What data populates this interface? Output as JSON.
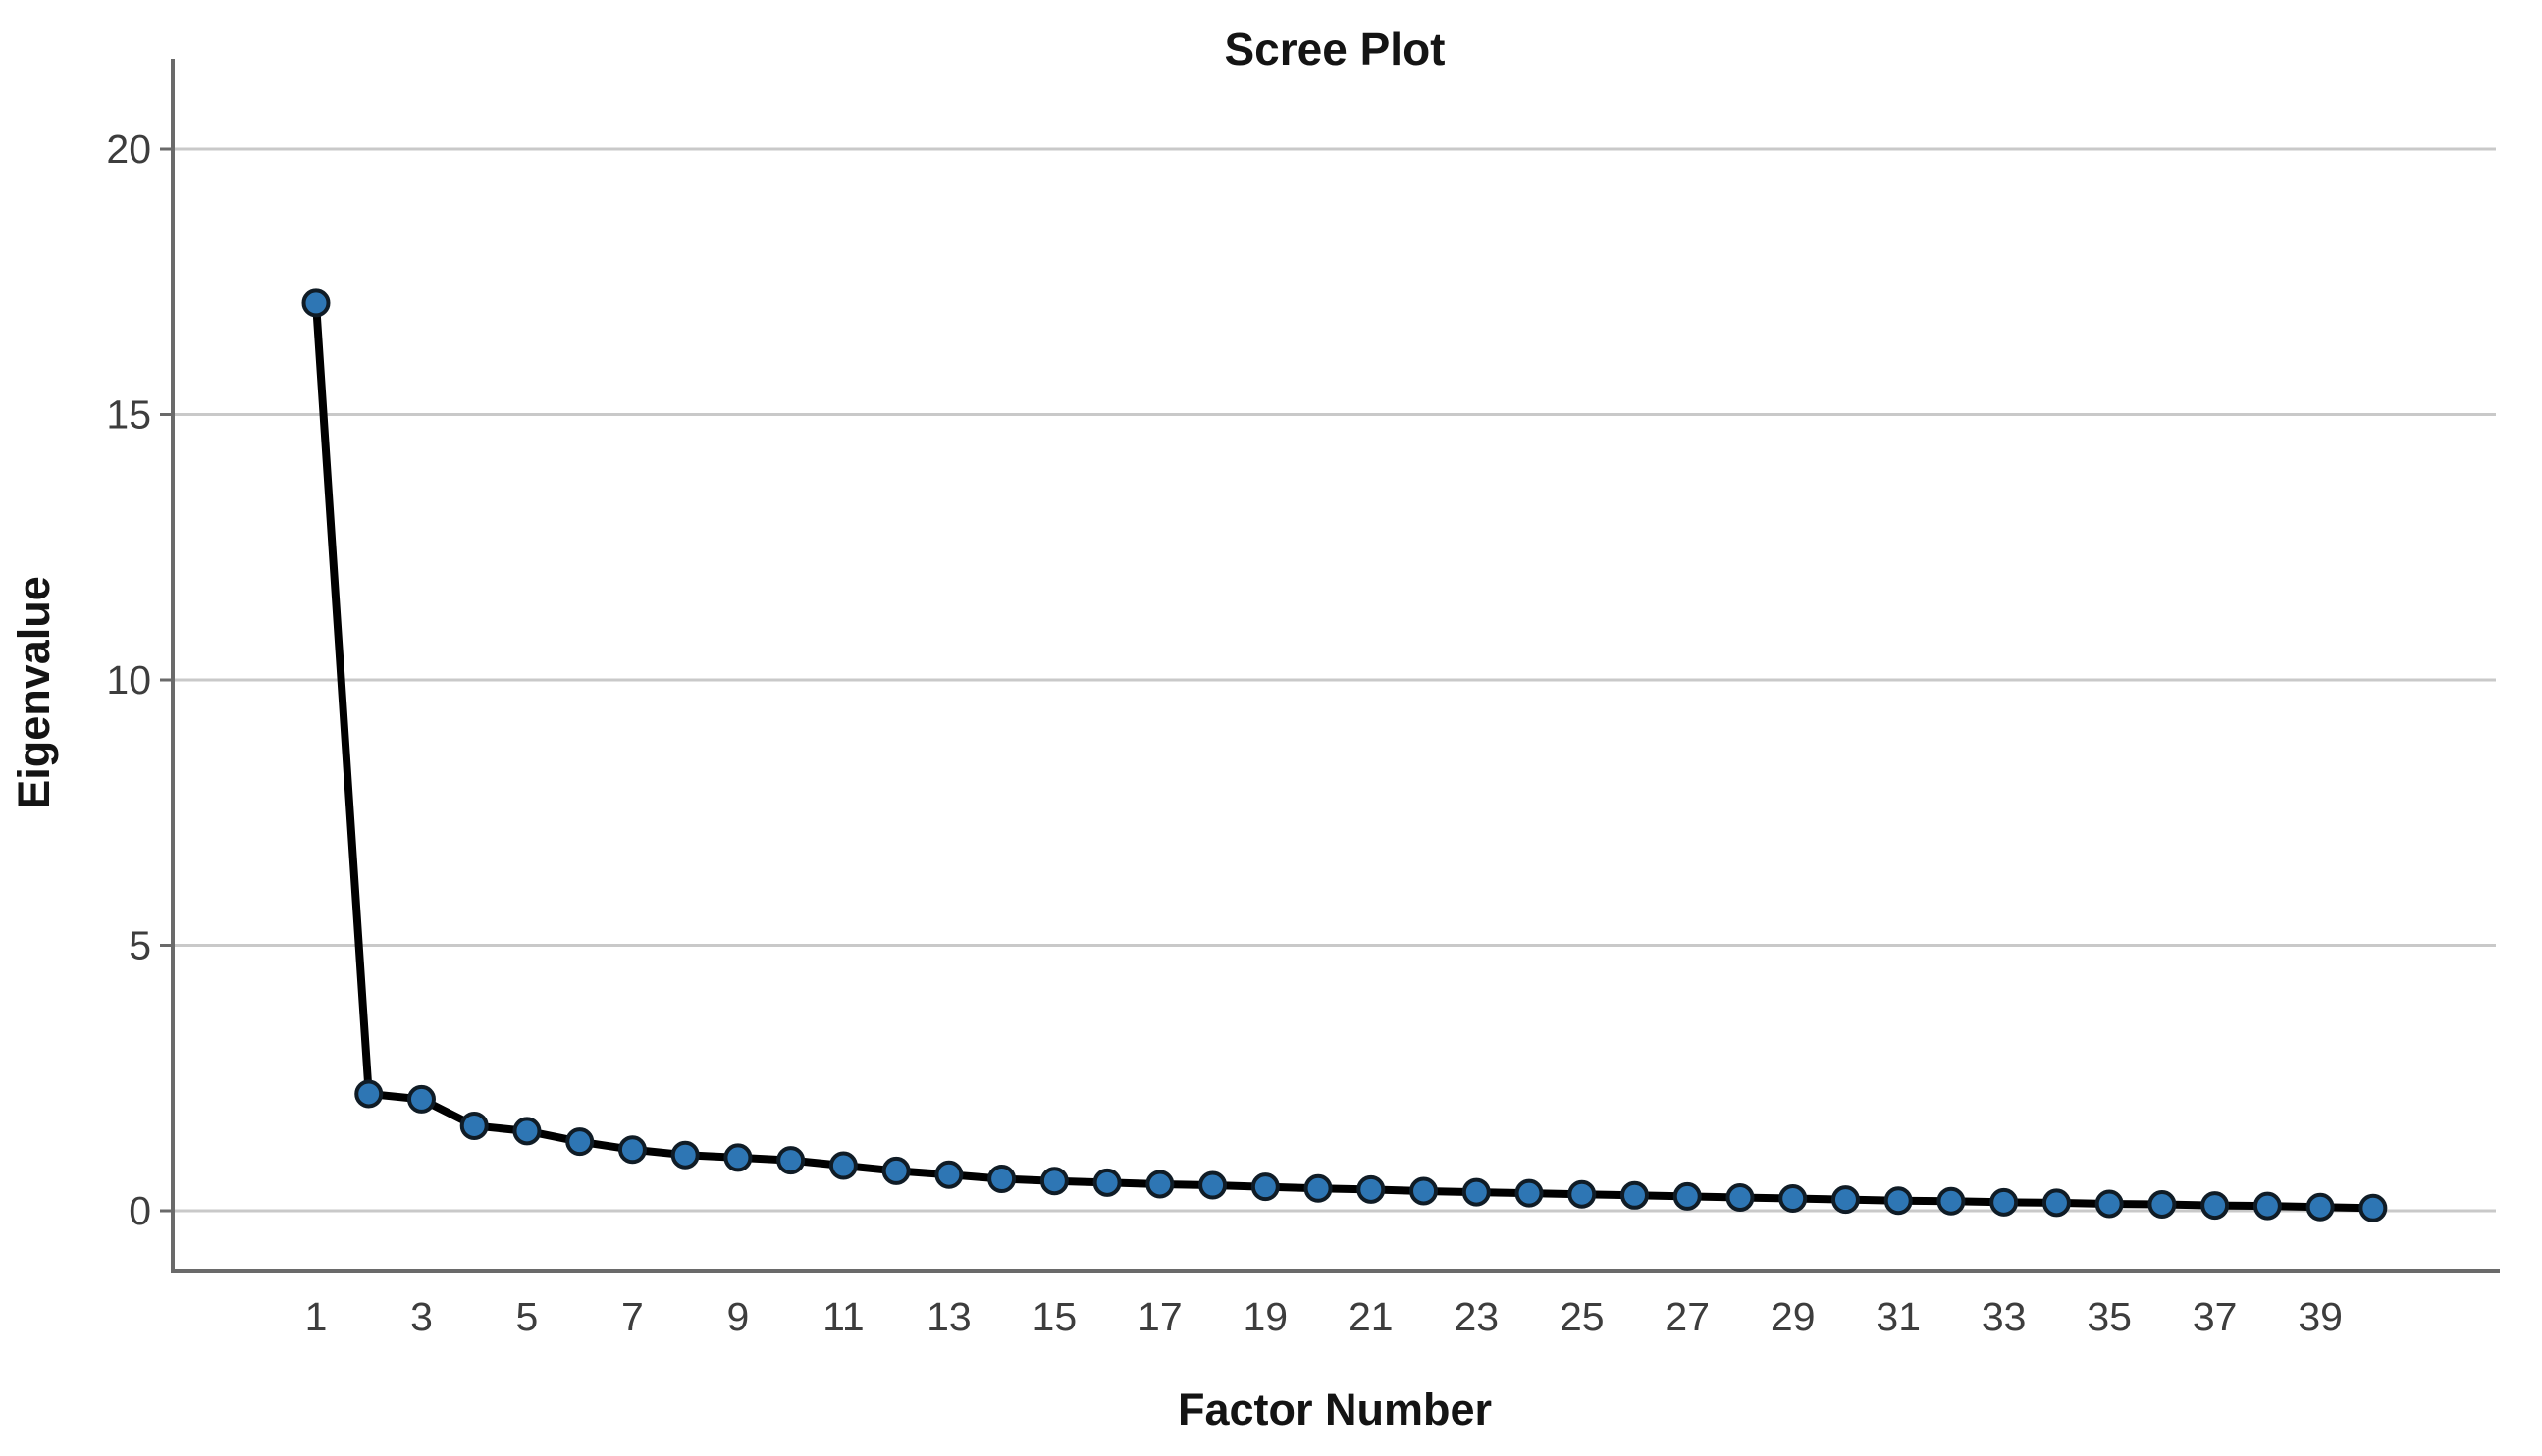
{
  "chart_data": {
    "type": "line",
    "title": "Scree Plot",
    "xlabel": "Factor Number",
    "ylabel": "Eigenvalue",
    "x": [
      1,
      2,
      3,
      4,
      5,
      6,
      7,
      8,
      9,
      10,
      11,
      12,
      13,
      14,
      15,
      16,
      17,
      18,
      19,
      20,
      21,
      22,
      23,
      24,
      25,
      26,
      27,
      28,
      29,
      30,
      31,
      32,
      33,
      34,
      35,
      36,
      37,
      38,
      39,
      40
    ],
    "values": [
      17.1,
      2.2,
      2.1,
      1.6,
      1.5,
      1.3,
      1.15,
      1.05,
      1.0,
      0.95,
      0.85,
      0.75,
      0.68,
      0.6,
      0.56,
      0.53,
      0.5,
      0.48,
      0.45,
      0.42,
      0.4,
      0.37,
      0.35,
      0.33,
      0.31,
      0.29,
      0.27,
      0.25,
      0.23,
      0.21,
      0.19,
      0.18,
      0.16,
      0.15,
      0.13,
      0.12,
      0.1,
      0.09,
      0.07,
      0.05
    ],
    "series_name": "Eigenvalue",
    "xticks": [
      1,
      3,
      5,
      7,
      9,
      11,
      13,
      15,
      17,
      19,
      21,
      23,
      25,
      27,
      29,
      31,
      33,
      35,
      37,
      39
    ],
    "yticks": [
      0,
      5,
      10,
      15,
      20
    ],
    "ylim": [
      0,
      20
    ],
    "grid": "horizontal-only",
    "legend": "none",
    "marker": "circle",
    "colors": {
      "marker_fill": "#2e76b4",
      "marker_stroke": "#101c26",
      "line": "#000000",
      "gridline": "#c9c9c9",
      "axis": "#6a6a6a",
      "tick_label": "#3d3d3d",
      "text": "#141414",
      "background": "#ffffff"
    }
  }
}
